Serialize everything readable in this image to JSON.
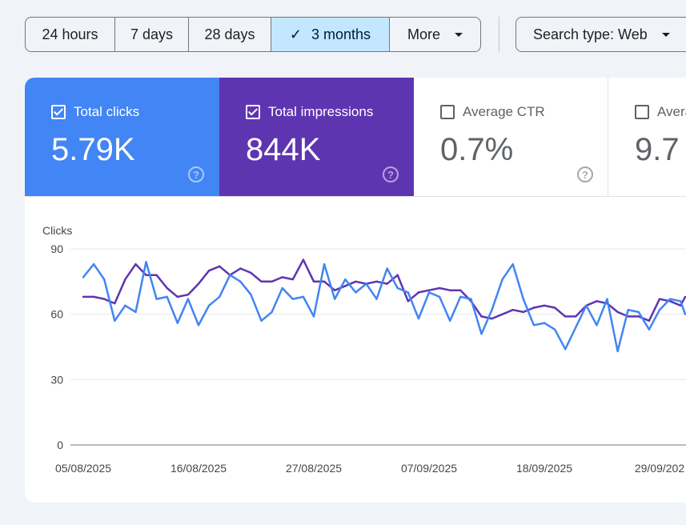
{
  "toolbar": {
    "ranges": [
      "24 hours",
      "7 days",
      "28 days",
      "3 months",
      "More"
    ],
    "selected": "3 months",
    "search_type": "Search type: Web"
  },
  "metrics": [
    {
      "label": "Total clicks",
      "value": "5.79K",
      "checked": true,
      "color": "#4285f4"
    },
    {
      "label": "Total impressions",
      "value": "844K",
      "checked": true,
      "color": "#5e35b1"
    },
    {
      "label": "Average CTR",
      "value": "0.7%",
      "checked": false
    },
    {
      "label": "Avera",
      "value": "9.7",
      "checked": false
    }
  ],
  "chart_data": {
    "type": "line",
    "ylabel": "Clicks",
    "ylim": [
      0,
      90
    ],
    "yticks": [
      0,
      30,
      60,
      90
    ],
    "xticks": [
      "05/08/2025",
      "16/08/2025",
      "27/08/2025",
      "07/09/2025",
      "18/09/2025",
      "29/09/202"
    ],
    "grid": true,
    "series": [
      {
        "name": "Total clicks",
        "color": "#4285f4",
        "values": [
          77,
          83,
          76,
          57,
          64,
          61,
          84,
          67,
          68,
          56,
          67,
          55,
          64,
          68,
          78,
          75,
          69,
          57,
          61,
          72,
          67,
          68,
          59,
          83,
          67,
          76,
          70,
          74,
          67,
          81,
          72,
          70,
          58,
          70,
          68,
          57,
          68,
          67,
          51,
          62,
          76,
          83,
          67,
          55,
          56,
          53,
          44,
          54,
          64,
          55,
          67,
          43,
          62,
          61,
          53,
          62,
          67,
          66,
          60
        ]
      },
      {
        "name": "Total impressions",
        "color": "#5e35b1",
        "values": [
          68,
          68,
          67,
          65,
          76,
          83,
          78,
          78,
          72,
          68,
          69,
          74,
          80,
          82,
          78,
          81,
          79,
          75,
          75,
          77,
          76,
          85,
          75,
          75,
          71,
          73,
          75,
          74,
          75,
          74,
          78,
          66,
          70,
          71,
          72,
          71,
          71,
          66,
          59,
          58,
          60,
          62,
          61,
          63,
          64,
          63,
          59,
          59,
          64,
          66,
          65,
          61,
          59,
          59,
          57,
          67,
          66,
          64,
          68
        ]
      }
    ]
  }
}
